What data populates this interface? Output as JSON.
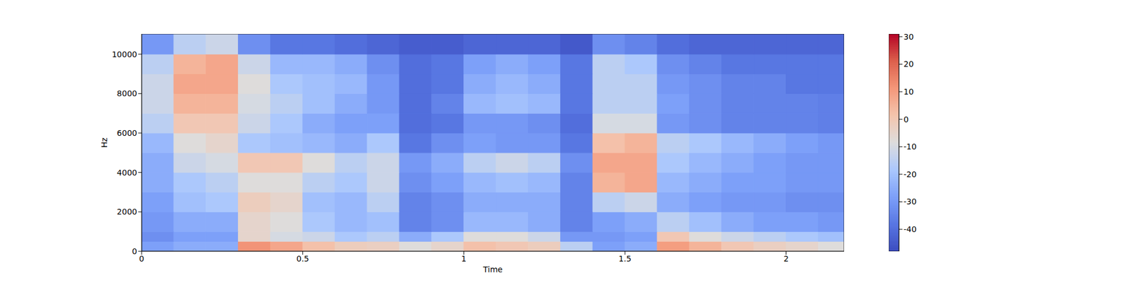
{
  "chart_data": {
    "type": "heatmap",
    "x_label": "Time",
    "y_label": "Hz",
    "x_edges": [
      0,
      0.1,
      0.2,
      0.3,
      0.4,
      0.5,
      0.6,
      0.7,
      0.8,
      0.9,
      1.0,
      1.1,
      1.2,
      1.3,
      1.4,
      1.5,
      1.6,
      1.7,
      1.8,
      1.9,
      2.0,
      2.1,
      2.18
    ],
    "y_edges": [
      0,
      500,
      1000,
      2000,
      3000,
      4000,
      5000,
      6000,
      7000,
      8000,
      9000,
      10000,
      11025
    ],
    "values": [
      [
        -28,
        -25,
        -25,
        12,
        8,
        2,
        -2,
        -3,
        -8,
        -5,
        2,
        0,
        -2,
        -15,
        -28,
        -25,
        10,
        5,
        0,
        -3,
        -5,
        -8
      ],
      [
        -32,
        -28,
        -28,
        -5,
        -10,
        -12,
        -18,
        -15,
        -25,
        -18,
        -8,
        -8,
        -12,
        -30,
        -30,
        -28,
        0,
        -8,
        -12,
        -15,
        -18,
        -20
      ],
      [
        -30,
        -25,
        -25,
        -5,
        -8,
        -18,
        -22,
        -20,
        -35,
        -32,
        -22,
        -22,
        -25,
        -35,
        -28,
        -25,
        -15,
        -20,
        -25,
        -28,
        -28,
        -30
      ],
      [
        -28,
        -20,
        -18,
        -2,
        -5,
        -20,
        -22,
        -15,
        -35,
        -32,
        -25,
        -25,
        -25,
        -35,
        -15,
        -12,
        -25,
        -28,
        -30,
        -30,
        -32,
        -32
      ],
      [
        -25,
        -18,
        -15,
        -8,
        -8,
        -15,
        -18,
        -12,
        -32,
        -28,
        -22,
        -20,
        -22,
        -35,
        5,
        8,
        -22,
        -25,
        -28,
        -28,
        -30,
        -30
      ],
      [
        -25,
        -12,
        -10,
        0,
        0,
        -8,
        -15,
        -12,
        -30,
        -25,
        -15,
        -12,
        -15,
        -32,
        8,
        8,
        -18,
        -22,
        -25,
        -28,
        -30,
        -30
      ],
      [
        -22,
        -8,
        -5,
        -18,
        -20,
        -22,
        -25,
        -18,
        -38,
        -32,
        -28,
        -30,
        -30,
        -38,
        2,
        5,
        -15,
        -18,
        -22,
        -25,
        -28,
        -30
      ],
      [
        -15,
        0,
        0,
        -12,
        -18,
        -25,
        -28,
        -28,
        -40,
        -38,
        -30,
        -30,
        -32,
        -40,
        -10,
        -10,
        -30,
        -32,
        -35,
        -35,
        -35,
        -36
      ],
      [
        -12,
        5,
        5,
        -10,
        -15,
        -20,
        -25,
        -30,
        -40,
        -35,
        -22,
        -20,
        -22,
        -38,
        -15,
        -15,
        -28,
        -32,
        -35,
        -35,
        -35,
        -36
      ],
      [
        -12,
        8,
        8,
        -8,
        -18,
        -20,
        -22,
        -30,
        -40,
        -38,
        -25,
        -22,
        -25,
        -38,
        -15,
        -15,
        -30,
        -32,
        -35,
        -35,
        -38,
        -38
      ],
      [
        -15,
        5,
        8,
        -12,
        -22,
        -22,
        -25,
        -32,
        -40,
        -38,
        -28,
        -25,
        -28,
        -38,
        -15,
        -18,
        -32,
        -35,
        -38,
        -38,
        -38,
        -38
      ],
      [
        -30,
        -15,
        -12,
        -32,
        -38,
        -38,
        -40,
        -42,
        -44,
        -44,
        -42,
        -42,
        -42,
        -45,
        -32,
        -35,
        -40,
        -42,
        -42,
        -42,
        -42,
        -42
      ]
    ],
    "xlim": [
      0,
      2.18
    ],
    "ylim": [
      0,
      11025
    ],
    "xticks": [
      0,
      0.5,
      1,
      1.5,
      2
    ],
    "yticks": [
      0,
      2000,
      4000,
      6000,
      8000,
      10000
    ],
    "colorbar": {
      "range": [
        -48,
        31
      ],
      "ticks": [
        -40,
        -30,
        -20,
        -10,
        0,
        10,
        20,
        30
      ]
    }
  }
}
